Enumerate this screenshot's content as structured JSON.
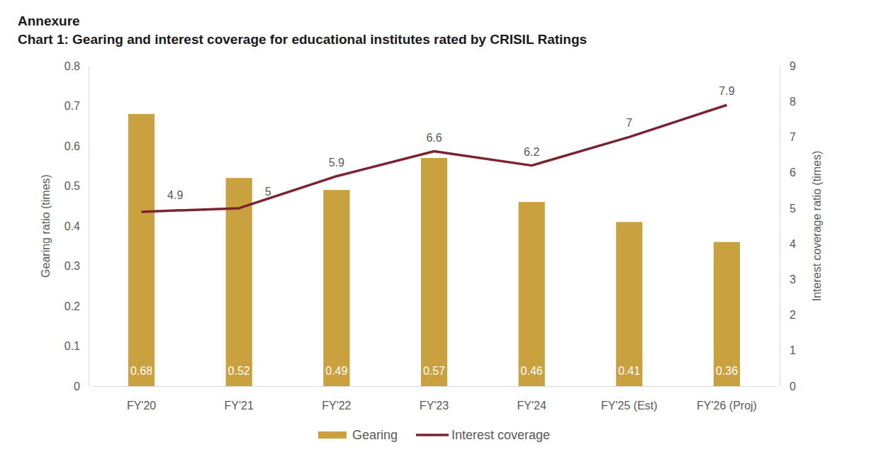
{
  "chart_data": {
    "type": "bar",
    "title": "Annexure",
    "subtitle": "Chart 1: Gearing and interest coverage for educational institutes rated by CRISIL Ratings",
    "y_label": "Gearing ratio (times)",
    "y2_label": "Interest coverage ratio (times)",
    "categories": [
      "FY'20",
      "FY'21",
      "FY'22",
      "FY'23",
      "FY'24",
      "FY'25 (Est)",
      "FY'26 (Proj)"
    ],
    "series": [
      {
        "name": "Gearing",
        "type": "bar",
        "color": "#c9a13f",
        "values": [
          0.68,
          0.52,
          0.49,
          0.57,
          0.46,
          0.41,
          0.36
        ]
      },
      {
        "name": "Interest coverage",
        "type": "line",
        "axis": "y2",
        "color": "#7b2331",
        "values": [
          4.9,
          5,
          5.9,
          6.6,
          6.2,
          7,
          7.9
        ]
      }
    ],
    "ylim": [
      0,
      0.8
    ],
    "yticks": [
      0,
      0.1,
      0.2,
      0.3,
      0.4,
      0.5,
      0.6,
      0.7,
      0.8
    ],
    "y2lim": [
      0,
      9
    ],
    "y2ticks": [
      0,
      1,
      2,
      3,
      4,
      5,
      6,
      7,
      8,
      9
    ],
    "grid": false,
    "legend": "bottom",
    "data_labels": true
  }
}
